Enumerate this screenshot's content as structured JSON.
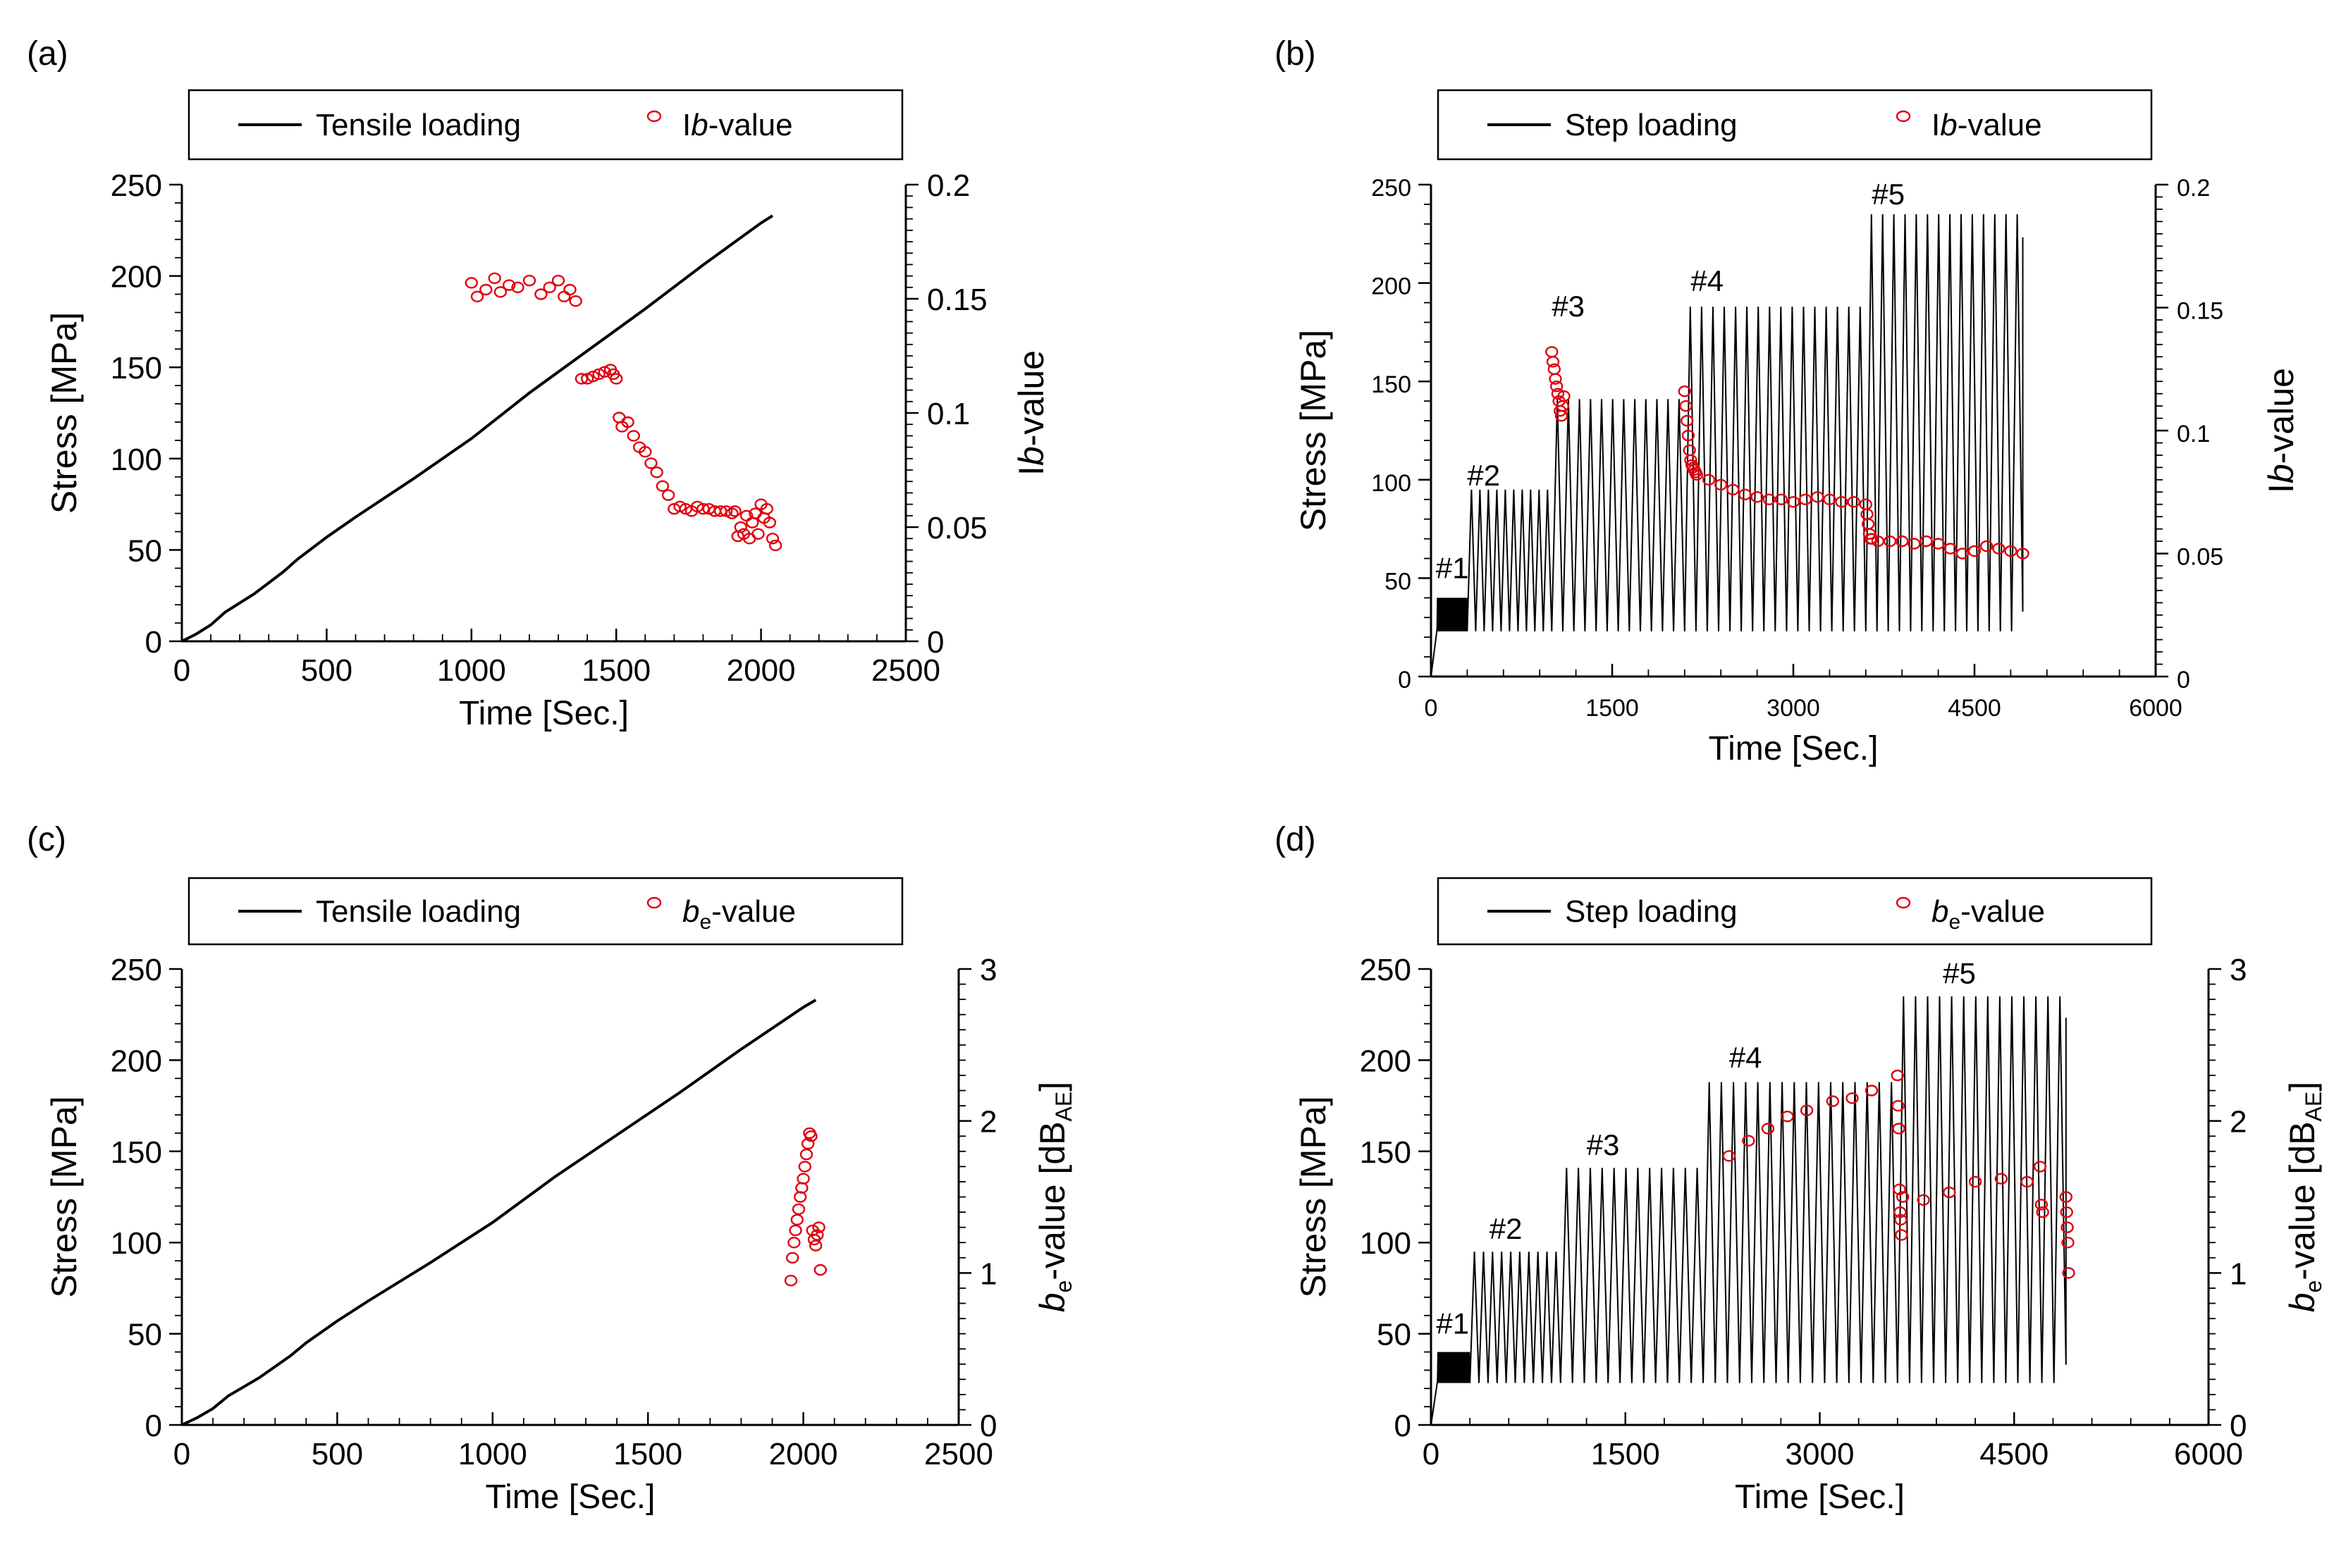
{
  "figure": {
    "panels": [
      "a",
      "b",
      "c",
      "d"
    ]
  },
  "chart_data": [
    {
      "id": "a",
      "type": "line+scatter",
      "panel_label": "(a)",
      "xlabel": "Time [Sec.]",
      "ylabel": "Stress [MPa]",
      "ylabel_right": {
        "parts": [
          "I",
          "b",
          "-value"
        ]
      },
      "xlim": [
        0,
        2500
      ],
      "xticks": [
        0,
        500,
        1000,
        1500,
        2000,
        2500
      ],
      "ylim": [
        0,
        250
      ],
      "yticks": [
        0,
        50,
        100,
        150,
        200,
        250
      ],
      "y2lim": [
        0,
        0.2
      ],
      "y2ticks": [
        0,
        0.05,
        0.1,
        0.15,
        0.2
      ],
      "y2ticklabels": [
        "0",
        "0.05",
        "0.1",
        "0.15",
        "0.2"
      ],
      "legend": {
        "line": "Tensile loading",
        "marker": [
          "I",
          "b",
          "-value"
        ]
      },
      "series": [
        {
          "name": "Tensile loading",
          "kind": "line",
          "axis": "left",
          "x": [
            0,
            50,
            100,
            150,
            200,
            250,
            300,
            350,
            400,
            500,
            600,
            800,
            1000,
            1200,
            1400,
            1600,
            1800,
            2000,
            2040
          ],
          "y": [
            0,
            4,
            9,
            16,
            21,
            26,
            32,
            38,
            45,
            57,
            68,
            89,
            111,
            136,
            159,
            182,
            206,
            229,
            233
          ]
        },
        {
          "name": "Ib-value",
          "kind": "scatter",
          "axis": "right",
          "x": [
            1000,
            1020,
            1050,
            1080,
            1100,
            1130,
            1160,
            1200,
            1240,
            1270,
            1300,
            1320,
            1340,
            1360,
            1380,
            1400,
            1420,
            1440,
            1460,
            1480,
            1490,
            1500,
            1510,
            1520,
            1540,
            1560,
            1580,
            1600,
            1620,
            1640,
            1660,
            1680,
            1700,
            1720,
            1740,
            1760,
            1780,
            1800,
            1820,
            1840,
            1860,
            1880,
            1900,
            1910,
            1920,
            1930,
            1940,
            1950,
            1960,
            1970,
            1980,
            1990,
            2000,
            2010,
            2020,
            2030,
            2040,
            2050
          ],
          "y": [
            0.157,
            0.151,
            0.154,
            0.159,
            0.153,
            0.156,
            0.155,
            0.158,
            0.152,
            0.155,
            0.158,
            0.151,
            0.154,
            0.149,
            0.115,
            0.115,
            0.116,
            0.117,
            0.118,
            0.119,
            0.117,
            0.115,
            0.098,
            0.094,
            0.096,
            0.09,
            0.085,
            0.083,
            0.078,
            0.074,
            0.068,
            0.064,
            0.058,
            0.059,
            0.058,
            0.057,
            0.059,
            0.058,
            0.058,
            0.057,
            0.057,
            0.057,
            0.056,
            0.057,
            0.046,
            0.05,
            0.047,
            0.055,
            0.045,
            0.052,
            0.056,
            0.047,
            0.06,
            0.054,
            0.058,
            0.052,
            0.045,
            0.042
          ]
        }
      ]
    },
    {
      "id": "b",
      "type": "line+scatter",
      "panel_label": "(b)",
      "xlabel": "Time [Sec.]",
      "ylabel": "Stress [MPa]",
      "ylabel_right": {
        "parts": [
          "I",
          "b",
          "-value"
        ]
      },
      "xlim": [
        0,
        6000
      ],
      "xticks": [
        0,
        1500,
        3000,
        4500,
        6000
      ],
      "ylim": [
        0,
        250
      ],
      "yticks": [
        0,
        50,
        100,
        150,
        200,
        250
      ],
      "y2lim": [
        0,
        0.2
      ],
      "y2ticks": [
        0,
        0.05,
        0.1,
        0.15,
        0.2
      ],
      "y2ticklabels": [
        "0",
        "0.05",
        "0.1",
        "0.15",
        "0.2"
      ],
      "legend": {
        "line": "Step loading",
        "marker": [
          "I",
          "b",
          "-value"
        ]
      },
      "steps": [
        {
          "label": "#1",
          "t0": 50,
          "t1": 300,
          "max": 40,
          "n": 28,
          "lx": 40,
          "ly": 50
        },
        {
          "label": "#2",
          "t0": 300,
          "t1": 1000,
          "max": 95,
          "n": 10,
          "lx": 300,
          "ly": 97
        },
        {
          "label": "#3",
          "t0": 1000,
          "t1": 2100,
          "max": 141,
          "n": 12,
          "lx": 1000,
          "ly": 183
        },
        {
          "label": "#4",
          "t0": 2100,
          "t1": 3600,
          "max": 188,
          "n": 16,
          "lx": 2150,
          "ly": 196
        },
        {
          "label": "#5",
          "t0": 3600,
          "t1": 4900,
          "max": 235,
          "n": 14,
          "lx": 3650,
          "ly": 240
        }
      ],
      "series": [
        {
          "name": "Step loading",
          "kind": "line",
          "axis": "left",
          "generated_from": "steps",
          "min_stress": 23
        },
        {
          "name": "Ib-value",
          "kind": "scatter",
          "axis": "right",
          "x": [
            1000,
            1010,
            1020,
            1030,
            1040,
            1050,
            1060,
            1070,
            1080,
            1090,
            1100,
            2100,
            2110,
            2120,
            2130,
            2140,
            2150,
            2160,
            2170,
            2180,
            2190,
            2200,
            2300,
            2400,
            2500,
            2600,
            2700,
            2800,
            2900,
            3000,
            3100,
            3200,
            3300,
            3400,
            3500,
            3600,
            3610,
            3620,
            3630,
            3640,
            3650,
            3700,
            3800,
            3900,
            4000,
            4100,
            4200,
            4300,
            4400,
            4500,
            4600,
            4700,
            4800,
            4900
          ],
          "y": [
            0.132,
            0.128,
            0.125,
            0.121,
            0.118,
            0.115,
            0.112,
            0.108,
            0.106,
            0.11,
            0.114,
            0.116,
            0.11,
            0.104,
            0.098,
            0.092,
            0.088,
            0.086,
            0.085,
            0.084,
            0.083,
            0.082,
            0.08,
            0.078,
            0.076,
            0.074,
            0.073,
            0.072,
            0.072,
            0.071,
            0.072,
            0.073,
            0.072,
            0.071,
            0.071,
            0.07,
            0.066,
            0.062,
            0.058,
            0.056,
            0.056,
            0.055,
            0.055,
            0.055,
            0.054,
            0.055,
            0.054,
            0.052,
            0.05,
            0.051,
            0.053,
            0.052,
            0.051,
            0.05
          ]
        }
      ]
    },
    {
      "id": "c",
      "type": "line+scatter",
      "panel_label": "(c)",
      "xlabel": "Time [Sec.]",
      "ylabel": "Stress [MPa]",
      "ylabel_right": {
        "parts": [
          "b",
          "e",
          "-value [dB",
          "AE",
          "]"
        ]
      },
      "xlim": [
        0,
        2500
      ],
      "xticks": [
        0,
        500,
        1000,
        1500,
        2000,
        2500
      ],
      "ylim": [
        0,
        250
      ],
      "yticks": [
        0,
        50,
        100,
        150,
        200,
        250
      ],
      "y2lim": [
        0,
        3
      ],
      "y2ticks": [
        0,
        1,
        2,
        3
      ],
      "y2ticklabels": [
        "0",
        "1",
        "2",
        "3"
      ],
      "legend": {
        "line": "Tensile loading",
        "marker": [
          "b",
          "e",
          "-value"
        ]
      },
      "series": [
        {
          "name": "Tensile loading",
          "kind": "line",
          "axis": "left",
          "x": [
            0,
            50,
            100,
            150,
            200,
            250,
            300,
            350,
            400,
            500,
            600,
            800,
            1000,
            1200,
            1400,
            1600,
            1800,
            2000,
            2040
          ],
          "y": [
            0,
            4,
            9,
            16,
            21,
            26,
            32,
            38,
            45,
            57,
            68,
            89,
            111,
            136,
            159,
            182,
            206,
            229,
            233
          ]
        },
        {
          "name": "be-value",
          "kind": "scatter",
          "axis": "right",
          "x": [
            1960,
            1965,
            1970,
            1975,
            1980,
            1985,
            1990,
            1995,
            2000,
            2005,
            2010,
            2015,
            2020,
            2025,
            2030,
            2035,
            2040,
            2045,
            2050,
            2055
          ],
          "y": [
            0.95,
            1.1,
            1.2,
            1.28,
            1.35,
            1.42,
            1.5,
            1.56,
            1.62,
            1.7,
            1.78,
            1.85,
            1.92,
            1.9,
            1.28,
            1.22,
            1.18,
            1.25,
            1.3,
            1.02
          ]
        }
      ]
    },
    {
      "id": "d",
      "type": "line+scatter",
      "panel_label": "(d)",
      "xlabel": "Time [Sec.]",
      "ylabel": "Stress [MPa]",
      "ylabel_right": {
        "parts": [
          "b",
          "e",
          "-value [dB",
          "AE",
          "]"
        ]
      },
      "xlim": [
        0,
        6000
      ],
      "xticks": [
        0,
        1500,
        3000,
        4500,
        6000
      ],
      "ylim": [
        0,
        250
      ],
      "yticks": [
        0,
        50,
        100,
        150,
        200,
        250
      ],
      "y2lim": [
        0,
        3
      ],
      "y2ticks": [
        0,
        1,
        2,
        3
      ],
      "y2ticklabels": [
        "0",
        "1",
        "2",
        "3"
      ],
      "legend": {
        "line": "Step loading",
        "marker": [
          "b",
          "e",
          "-value"
        ]
      },
      "steps": [
        {
          "label": "#1",
          "t0": 50,
          "t1": 300,
          "max": 40,
          "n": 28,
          "lx": 40,
          "ly": 50
        },
        {
          "label": "#2",
          "t0": 300,
          "t1": 1000,
          "max": 95,
          "n": 10,
          "lx": 450,
          "ly": 102
        },
        {
          "label": "#3",
          "t0": 1000,
          "t1": 2100,
          "max": 141,
          "n": 12,
          "lx": 1200,
          "ly": 148
        },
        {
          "label": "#4",
          "t0": 2100,
          "t1": 3600,
          "max": 188,
          "n": 16,
          "lx": 2300,
          "ly": 196
        },
        {
          "label": "#5",
          "t0": 3600,
          "t1": 4900,
          "max": 235,
          "n": 14,
          "lx": 3950,
          "ly": 242
        }
      ],
      "series": [
        {
          "name": "Step loading",
          "kind": "line",
          "axis": "left",
          "generated_from": "steps",
          "min_stress": 23
        },
        {
          "name": "be-value",
          "kind": "scatter",
          "axis": "right",
          "x": [
            2300,
            2450,
            2600,
            2750,
            2900,
            3100,
            3250,
            3400,
            3600,
            3605,
            3610,
            3615,
            3620,
            3625,
            3630,
            3640,
            3800,
            4000,
            4200,
            4400,
            4600,
            4700,
            4710,
            4720,
            4900,
            4905,
            4910,
            4915,
            4920
          ],
          "y": [
            1.77,
            1.87,
            1.95,
            2.03,
            2.07,
            2.13,
            2.15,
            2.2,
            2.3,
            2.1,
            1.95,
            1.55,
            1.4,
            1.35,
            1.25,
            1.5,
            1.48,
            1.53,
            1.6,
            1.62,
            1.6,
            1.7,
            1.45,
            1.4,
            1.5,
            1.4,
            1.3,
            1.2,
            1.0
          ]
        }
      ]
    }
  ]
}
